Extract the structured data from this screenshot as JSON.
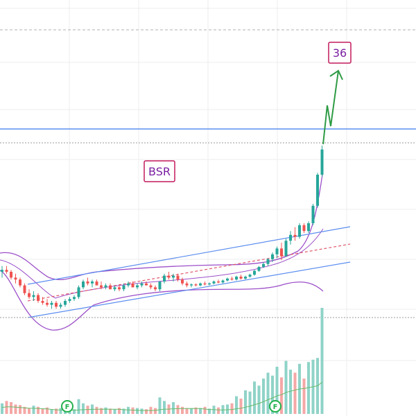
{
  "chart_data": {
    "type": "candlestick",
    "annotations": {
      "ticker_label": "BSR",
      "target_label": "36"
    },
    "earnings_markers": [
      "F",
      "F"
    ],
    "colors": {
      "up": "#26a69a",
      "down": "#ef5350",
      "volume_up": "#8fd3c8",
      "volume_down": "#f4a8a6",
      "bollinger": "#9c4fc9",
      "bollinger_fill": "#e8f1fb",
      "channel": "#5b8def",
      "channel_mid": "#e0566b",
      "resistance": "#5b8def",
      "projection": "#2e9b45",
      "label_border": "#c2185b",
      "label_text": "#7b1fa2",
      "volume_ma": "#66bb6a",
      "grid": "#ececec"
    },
    "candles": [
      [
        1.0,
        1.3,
        0.7,
        1.1
      ],
      [
        1.1,
        1.3,
        0.9,
        1.0
      ],
      [
        1.0,
        1.1,
        0.6,
        0.7
      ],
      [
        0.7,
        0.9,
        0.4,
        0.6
      ],
      [
        0.6,
        0.7,
        0.2,
        0.3
      ],
      [
        0.3,
        0.4,
        -0.2,
        -0.1
      ],
      [
        -0.1,
        0.1,
        -0.4,
        -0.3
      ],
      [
        -0.3,
        0.0,
        -0.5,
        -0.2
      ],
      [
        -0.2,
        -0.1,
        -0.6,
        -0.5
      ],
      [
        -0.5,
        -0.3,
        -0.7,
        -0.6
      ],
      [
        -0.6,
        -0.4,
        -0.8,
        -0.7
      ],
      [
        -0.7,
        -0.5,
        -0.9,
        -0.6
      ],
      [
        -0.6,
        -0.5,
        -0.9,
        -0.8
      ],
      [
        -0.8,
        -0.6,
        -0.9,
        -0.7
      ],
      [
        -0.7,
        -0.4,
        -0.8,
        -0.5
      ],
      [
        -0.5,
        -0.3,
        -0.6,
        -0.4
      ],
      [
        -0.4,
        -0.2,
        -0.5,
        -0.3
      ],
      [
        -0.3,
        0.3,
        -0.4,
        0.2
      ],
      [
        0.2,
        0.6,
        0.1,
        0.5
      ],
      [
        0.5,
        0.7,
        0.3,
        0.4
      ],
      [
        0.4,
        0.6,
        0.2,
        0.5
      ],
      [
        0.5,
        0.6,
        0.3,
        0.3
      ],
      [
        0.3,
        0.5,
        0.1,
        0.2
      ],
      [
        0.2,
        0.4,
        0.1,
        0.3
      ],
      [
        0.3,
        0.4,
        0.1,
        0.1
      ],
      [
        0.1,
        0.3,
        0.0,
        0.2
      ],
      [
        0.2,
        0.3,
        0.0,
        0.1
      ],
      [
        0.1,
        0.4,
        0.0,
        0.3
      ],
      [
        0.3,
        0.5,
        0.2,
        0.4
      ],
      [
        0.4,
        0.5,
        0.2,
        0.2
      ],
      [
        0.2,
        0.4,
        0.1,
        0.3
      ],
      [
        0.3,
        0.5,
        0.2,
        0.4
      ],
      [
        0.4,
        0.5,
        0.3,
        0.3
      ],
      [
        0.3,
        0.4,
        0.1,
        0.2
      ],
      [
        0.2,
        0.3,
        0.0,
        0.1
      ],
      [
        0.1,
        0.5,
        0.0,
        0.5
      ],
      [
        0.5,
        0.9,
        0.4,
        0.8
      ],
      [
        0.8,
        1.0,
        0.6,
        0.7
      ],
      [
        0.7,
        0.9,
        0.5,
        0.8
      ],
      [
        0.8,
        0.9,
        0.5,
        0.6
      ],
      [
        0.6,
        0.7,
        0.3,
        0.4
      ],
      [
        0.4,
        0.5,
        0.2,
        0.3
      ],
      [
        0.3,
        0.4,
        0.2,
        0.35
      ],
      [
        0.35,
        0.4,
        0.25,
        0.3
      ],
      [
        0.3,
        0.45,
        0.25,
        0.4
      ],
      [
        0.4,
        0.5,
        0.3,
        0.35
      ],
      [
        0.35,
        0.45,
        0.3,
        0.4
      ],
      [
        0.4,
        0.55,
        0.35,
        0.5
      ],
      [
        0.5,
        0.6,
        0.4,
        0.45
      ],
      [
        0.45,
        0.6,
        0.4,
        0.55
      ],
      [
        0.55,
        0.7,
        0.5,
        0.65
      ],
      [
        0.65,
        0.75,
        0.55,
        0.6
      ],
      [
        0.6,
        0.8,
        0.55,
        0.75
      ],
      [
        0.75,
        0.85,
        0.6,
        0.65
      ],
      [
        0.65,
        0.8,
        0.6,
        0.75
      ],
      [
        0.75,
        0.9,
        0.7,
        0.85
      ],
      [
        0.85,
        1.1,
        0.8,
        1.05
      ],
      [
        1.05,
        1.3,
        1.0,
        1.25
      ],
      [
        1.25,
        1.5,
        1.2,
        1.4
      ],
      [
        1.4,
        1.7,
        1.3,
        1.65
      ],
      [
        1.65,
        2.0,
        1.5,
        1.9
      ],
      [
        1.9,
        2.3,
        1.7,
        2.2
      ],
      [
        2.2,
        2.5,
        1.6,
        1.8
      ],
      [
        1.8,
        2.7,
        1.8,
        2.6
      ],
      [
        2.6,
        3.1,
        2.4,
        2.9
      ],
      [
        2.9,
        3.3,
        2.6,
        2.8
      ],
      [
        2.8,
        3.5,
        2.7,
        3.4
      ],
      [
        3.4,
        3.5,
        3.0,
        3.1
      ],
      [
        3.1,
        3.6,
        3.0,
        3.5
      ],
      [
        3.5,
        4.5,
        3.4,
        4.4
      ],
      [
        4.4,
        6.1,
        4.3,
        6.0
      ],
      [
        6.0,
        7.5,
        5.9,
        7.3
      ]
    ],
    "volume": [
      18,
      22,
      20,
      16,
      15,
      12,
      10,
      14,
      12,
      9,
      11,
      8,
      9,
      10,
      12,
      9,
      8,
      25,
      18,
      14,
      16,
      12,
      10,
      11,
      9,
      8,
      10,
      9,
      12,
      11,
      10,
      9,
      8,
      12,
      10,
      28,
      22,
      16,
      20,
      15,
      12,
      10,
      9,
      11,
      10,
      12,
      9,
      14,
      11,
      15,
      16,
      18,
      30,
      26,
      40,
      38,
      55,
      48,
      60,
      70,
      65,
      80,
      62,
      90,
      75,
      70,
      85,
      60,
      88,
      92,
      95,
      180
    ]
  }
}
